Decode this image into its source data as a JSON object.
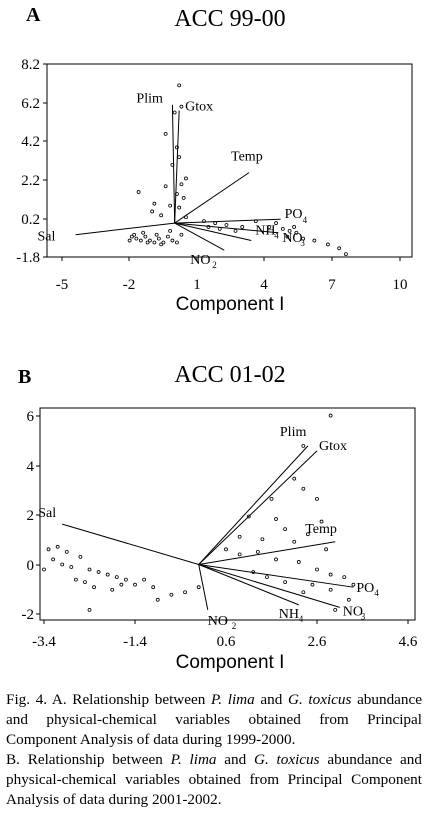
{
  "chart_data": [
    {
      "type": "biplot",
      "panel_label": "A",
      "title": "ACC 99-00",
      "xlabel": "Component I",
      "ylabel": "",
      "xlim": [
        -5,
        10
      ],
      "ylim": [
        -1.8,
        8.2
      ],
      "xticks": [
        "-5",
        "-2",
        "1",
        "4",
        "7",
        "10"
      ],
      "yticks": [
        "8.2",
        "6.2",
        "4.2",
        "2.2",
        "0.2",
        "-1.8"
      ],
      "vectors": [
        {
          "name": "Plim",
          "x": -0.1,
          "y": 6.1
        },
        {
          "name": "Gtox",
          "x": 0.2,
          "y": 5.8
        },
        {
          "name": "Temp",
          "x": 3.3,
          "y": 2.6
        },
        {
          "name": "Sal",
          "x": -4.4,
          "y": -0.6
        },
        {
          "name": "PO4",
          "x": 4.7,
          "y": 0.2
        },
        {
          "name": "NO3",
          "x": 4.6,
          "y": -0.5
        },
        {
          "name": "NH4",
          "x": 3.4,
          "y": -0.9
        },
        {
          "name": "NO2",
          "x": 2.2,
          "y": -1.4
        }
      ],
      "vector_labels": [
        "Plim",
        "Gtox",
        "Temp",
        "Sal",
        "PO",
        "4",
        "NO",
        "3",
        "NH",
        "4",
        "NO",
        "2"
      ],
      "points": [
        [
          0.2,
          7.1
        ],
        [
          0.3,
          6.0
        ],
        [
          0.0,
          5.7
        ],
        [
          -0.4,
          4.6
        ],
        [
          0.1,
          3.9
        ],
        [
          0.2,
          3.4
        ],
        [
          -0.1,
          3.0
        ],
        [
          0.5,
          2.3
        ],
        [
          0.3,
          2.0
        ],
        [
          -0.4,
          1.9
        ],
        [
          -1.6,
          1.6
        ],
        [
          0.1,
          1.5
        ],
        [
          0.4,
          1.3
        ],
        [
          -0.9,
          1.0
        ],
        [
          -0.2,
          0.9
        ],
        [
          0.2,
          0.8
        ],
        [
          -1.0,
          0.6
        ],
        [
          -0.6,
          0.4
        ],
        [
          0.5,
          0.3
        ],
        [
          1.3,
          0.1
        ],
        [
          1.8,
          0.0
        ],
        [
          2.3,
          -0.1
        ],
        [
          3.0,
          -0.2
        ],
        [
          3.6,
          0.1
        ],
        [
          4.2,
          -0.2
        ],
        [
          4.5,
          0.0
        ],
        [
          5.1,
          -0.4
        ],
        [
          5.4,
          -0.5
        ],
        [
          5.7,
          -0.8
        ],
        [
          6.2,
          -0.9
        ],
        [
          6.8,
          -1.1
        ],
        [
          7.3,
          -1.3
        ],
        [
          7.6,
          -1.6
        ],
        [
          5.0,
          -0.7
        ],
        [
          4.8,
          -0.3
        ],
        [
          5.3,
          -0.2
        ],
        [
          2.7,
          -0.4
        ],
        [
          2.0,
          -0.3
        ],
        [
          1.5,
          -0.2
        ],
        [
          -1.9,
          -0.7
        ],
        [
          -1.7,
          -0.8
        ],
        [
          -1.5,
          -0.9
        ],
        [
          -1.3,
          -0.7
        ],
        [
          -1.1,
          -0.9
        ],
        [
          -0.9,
          -1.0
        ],
        [
          -0.7,
          -0.8
        ],
        [
          -0.5,
          -1.0
        ],
        [
          -0.3,
          -0.7
        ],
        [
          -0.1,
          -0.9
        ],
        [
          0.1,
          -1.0
        ],
        [
          -2.0,
          -0.9
        ],
        [
          -1.8,
          -0.6
        ],
        [
          -1.2,
          -1.0
        ],
        [
          -0.8,
          -0.6
        ],
        [
          -1.4,
          -0.5
        ],
        [
          -0.6,
          -1.1
        ],
        [
          0.3,
          -0.6
        ],
        [
          -0.2,
          -0.4
        ]
      ]
    },
    {
      "type": "biplot",
      "panel_label": "B",
      "title": "ACC 01-02",
      "xlabel": "Component I",
      "ylabel": "",
      "xlim": [
        -3.4,
        4.6
      ],
      "ylim": [
        -2.2,
        6.2
      ],
      "xticks": [
        "-3.4",
        "-1.4",
        "0.6",
        "2.6",
        "4.6"
      ],
      "yticks": [
        "6",
        "4",
        "2",
        "0",
        "-2"
      ],
      "vectors": [
        {
          "name": "Plim",
          "x": 2.4,
          "y": 4.7
        },
        {
          "name": "Gtox",
          "x": 2.6,
          "y": 4.5
        },
        {
          "name": "Temp",
          "x": 3.0,
          "y": 0.9
        },
        {
          "name": "Sal",
          "x": -3.0,
          "y": 1.6
        },
        {
          "name": "PO4",
          "x": 3.4,
          "y": -0.9
        },
        {
          "name": "NO3",
          "x": 3.1,
          "y": -1.7
        },
        {
          "name": "NH4",
          "x": 2.2,
          "y": -1.6
        },
        {
          "name": "NO2",
          "x": 0.2,
          "y": -1.8
        }
      ],
      "vector_labels": [
        "Plim",
        "Gtox",
        "Temp",
        "Sal",
        "PO",
        "4",
        "NO",
        "3",
        "NH",
        "4",
        "NO",
        "2"
      ],
      "points": [
        [
          2.9,
          5.9
        ],
        [
          2.3,
          4.7
        ],
        [
          2.1,
          3.4
        ],
        [
          2.3,
          3.0
        ],
        [
          1.6,
          2.6
        ],
        [
          2.6,
          2.6
        ],
        [
          1.1,
          1.9
        ],
        [
          1.7,
          1.8
        ],
        [
          1.9,
          1.4
        ],
        [
          2.7,
          1.7
        ],
        [
          0.9,
          1.1
        ],
        [
          1.4,
          1.0
        ],
        [
          2.1,
          0.9
        ],
        [
          2.4,
          1.2
        ],
        [
          2.8,
          0.6
        ],
        [
          0.6,
          0.6
        ],
        [
          0.9,
          0.4
        ],
        [
          1.3,
          0.5
        ],
        [
          1.7,
          0.2
        ],
        [
          2.2,
          0.1
        ],
        [
          2.6,
          -0.2
        ],
        [
          2.9,
          -0.4
        ],
        [
          3.2,
          -0.5
        ],
        [
          3.4,
          -0.8
        ],
        [
          2.5,
          -0.8
        ],
        [
          2.9,
          -1.0
        ],
        [
          3.3,
          -1.4
        ],
        [
          3.0,
          -1.8
        ],
        [
          1.5,
          -0.5
        ],
        [
          1.9,
          -0.7
        ],
        [
          2.3,
          -1.1
        ],
        [
          1.2,
          -0.3
        ],
        [
          -3.3,
          0.6
        ],
        [
          -3.1,
          0.7
        ],
        [
          -2.9,
          0.5
        ],
        [
          -3.2,
          0.2
        ],
        [
          -3.0,
          0.0
        ],
        [
          -2.8,
          -0.1
        ],
        [
          -2.6,
          0.3
        ],
        [
          -2.4,
          -0.2
        ],
        [
          -2.2,
          -0.3
        ],
        [
          -2.0,
          -0.4
        ],
        [
          -1.8,
          -0.5
        ],
        [
          -1.6,
          -0.6
        ],
        [
          -1.4,
          -0.8
        ],
        [
          -1.2,
          -0.6
        ],
        [
          -1.0,
          -0.9
        ],
        [
          -2.7,
          -0.6
        ],
        [
          -2.5,
          -0.7
        ],
        [
          -2.3,
          -0.9
        ],
        [
          -1.9,
          -1.0
        ],
        [
          -1.7,
          -0.8
        ],
        [
          -0.9,
          -1.4
        ],
        [
          -0.6,
          -1.2
        ],
        [
          -0.3,
          -1.1
        ],
        [
          -2.4,
          -1.8
        ],
        [
          0.0,
          -0.9
        ],
        [
          -3.4,
          -0.2
        ]
      ]
    }
  ],
  "caption": {
    "a_prefix": "Fig. 4. A. Relationship between ",
    "a_species1": "P. lima",
    "a_and": " and ",
    "a_species2": "G. toxicus",
    "a_rest": " abundance and physical-chemical variables obtained from Principal Component Analysis of data during 1999-2000.",
    "b_prefix": "B. Relationship between ",
    "b_species1": "P. lima",
    "b_and": " and ",
    "b_species2": "G. toxicus",
    "b_rest": " abundance and physical-chemical variables obtained from Principal Component Analysis of data during 2001-2002."
  }
}
